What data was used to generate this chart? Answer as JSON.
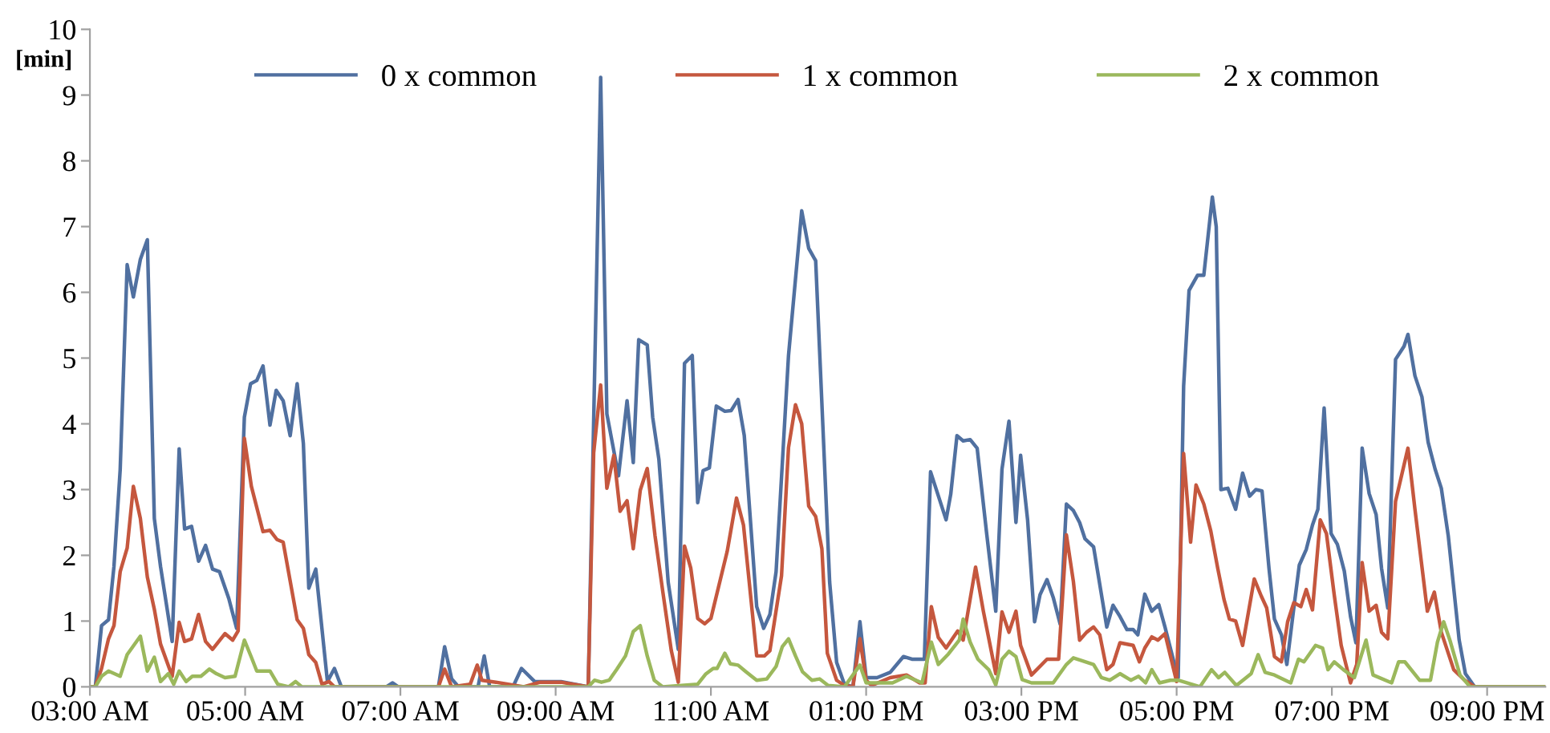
{
  "chart_data": {
    "type": "line",
    "ylabel": "[min]",
    "xlim": [
      3,
      21.75
    ],
    "ylim": [
      0,
      10
    ],
    "yticks": [
      0,
      1,
      2,
      3,
      4,
      5,
      6,
      7,
      8,
      9,
      10
    ],
    "xticks": [
      {
        "value": 3,
        "label": "03:00 AM"
      },
      {
        "value": 5,
        "label": "05:00 AM"
      },
      {
        "value": 7,
        "label": "07:00 AM"
      },
      {
        "value": 9,
        "label": "09:00 AM"
      },
      {
        "value": 11,
        "label": "11:00 AM"
      },
      {
        "value": 13,
        "label": "01:00 PM"
      },
      {
        "value": 15,
        "label": "03:00 PM"
      },
      {
        "value": 17,
        "label": "05:00 PM"
      },
      {
        "value": 19,
        "label": "07:00 PM"
      },
      {
        "value": 21,
        "label": "09:00 PM"
      }
    ],
    "grid": false,
    "legend": "top",
    "marker": "none",
    "line_style": "solid",
    "series": [
      {
        "name": "0 x common",
        "color": "#5070a0",
        "x": [
          3.0,
          3.07,
          3.15,
          3.24,
          3.31,
          3.39,
          3.48,
          3.56,
          3.65,
          3.74,
          3.83,
          3.91,
          4.06,
          4.15,
          4.22,
          4.31,
          4.4,
          4.49,
          4.58,
          4.67,
          4.79,
          4.89,
          4.99,
          5.07,
          5.15,
          5.23,
          5.32,
          5.4,
          5.49,
          5.58,
          5.67,
          5.75,
          5.82,
          5.91,
          6.06,
          6.15,
          6.24,
          6.82,
          6.9,
          6.97,
          7.49,
          7.57,
          7.66,
          7.75,
          8.0,
          8.08,
          8.15,
          8.45,
          8.56,
          8.73,
          9.07,
          9.42,
          9.58,
          9.66,
          9.81,
          9.92,
          10.0,
          10.07,
          10.18,
          10.25,
          10.33,
          10.45,
          10.58,
          10.66,
          10.76,
          10.83,
          10.9,
          10.98,
          11.07,
          11.18,
          11.26,
          11.35,
          11.43,
          11.59,
          11.68,
          11.76,
          11.84,
          12.0,
          12.17,
          12.26,
          12.35,
          12.53,
          12.62,
          12.72,
          12.83,
          12.92,
          13.0,
          13.14,
          13.31,
          13.48,
          13.59,
          13.75,
          13.83,
          14.03,
          14.09,
          14.17,
          14.25,
          14.34,
          14.43,
          14.55,
          14.67,
          14.75,
          14.84,
          14.93,
          14.99,
          15.08,
          15.17,
          15.24,
          15.33,
          15.41,
          15.5,
          15.58,
          15.67,
          15.75,
          15.82,
          15.93,
          16.1,
          16.18,
          16.27,
          16.36,
          16.44,
          16.5,
          16.59,
          16.68,
          16.77,
          16.85,
          16.99,
          17.02,
          17.09,
          17.16,
          17.27,
          17.35,
          17.46,
          17.51,
          17.57,
          17.66,
          17.76,
          17.85,
          17.94,
          18.02,
          18.1,
          18.19,
          18.26,
          18.35,
          18.42,
          18.5,
          18.58,
          18.67,
          18.75,
          18.82,
          18.9,
          18.99,
          19.07,
          19.16,
          19.24,
          19.31,
          19.39,
          19.48,
          19.57,
          19.64,
          19.72,
          19.82,
          19.93,
          19.98,
          20.07,
          20.16,
          20.24,
          20.33,
          20.41,
          20.5,
          20.64,
          20.72,
          20.84,
          21.75
        ],
        "values": [
          0,
          0,
          0.93,
          1.02,
          1.83,
          3.3,
          6.42,
          5.93,
          6.5,
          6.8,
          2.56,
          1.83,
          0.69,
          3.62,
          2.4,
          2.44,
          1.91,
          2.15,
          1.79,
          1.75,
          1.34,
          0.89,
          4.1,
          4.61,
          4.66,
          4.88,
          3.98,
          4.51,
          4.35,
          3.82,
          4.61,
          3.7,
          1.5,
          1.79,
          0.08,
          0.28,
          0,
          0,
          0.06,
          0,
          0,
          0.61,
          0.12,
          0,
          0,
          0.47,
          0,
          0,
          0.28,
          0.08,
          0.08,
          0,
          9.27,
          4.15,
          3.21,
          4.35,
          3.41,
          5.28,
          5.2,
          4.1,
          3.46,
          1.59,
          0.57,
          4.92,
          5.04,
          2.8,
          3.29,
          3.33,
          4.27,
          4.19,
          4.2,
          4.37,
          3.82,
          1.22,
          0.89,
          1.1,
          1.75,
          5.04,
          7.24,
          6.67,
          6.48,
          1.59,
          0.37,
          0.04,
          0,
          0.99,
          0.14,
          0.14,
          0.22,
          0.46,
          0.42,
          0.42,
          3.27,
          2.54,
          2.93,
          3.82,
          3.74,
          3.76,
          3.63,
          2.36,
          1.15,
          3.31,
          4.04,
          2.5,
          3.52,
          2.54,
          0.99,
          1.4,
          1.63,
          1.36,
          0.95,
          2.78,
          2.68,
          2.5,
          2.25,
          2.13,
          0.91,
          1.24,
          1.07,
          0.87,
          0.87,
          0.79,
          1.41,
          1.15,
          1.25,
          0.91,
          0.26,
          0.14,
          4.57,
          6.03,
          6.26,
          6.26,
          7.45,
          7.0,
          3.0,
          3.02,
          2.7,
          3.25,
          2.9,
          3.0,
          2.98,
          1.8,
          1.03,
          0.79,
          0.34,
          1.11,
          1.85,
          2.09,
          2.46,
          2.7,
          4.24,
          2.33,
          2.17,
          1.76,
          1.07,
          0.67,
          3.63,
          2.94,
          2.62,
          1.8,
          1.2,
          4.98,
          5.18,
          5.36,
          4.73,
          4.41,
          3.72,
          3.31,
          3.02,
          2.29,
          0.71,
          0.2,
          0,
          0
        ]
      },
      {
        "name": "1 x common",
        "color": "#c5573e",
        "x": [
          3.0,
          3.07,
          3.15,
          3.24,
          3.31,
          3.39,
          3.48,
          3.56,
          3.65,
          3.74,
          3.83,
          3.91,
          4.06,
          4.15,
          4.22,
          4.31,
          4.4,
          4.49,
          4.58,
          4.74,
          4.84,
          4.91,
          4.99,
          5.08,
          5.23,
          5.32,
          5.41,
          5.49,
          5.67,
          5.75,
          5.82,
          5.91,
          5.99,
          6.08,
          6.15,
          7.49,
          7.57,
          7.66,
          7.9,
          7.99,
          8.05,
          8.23,
          8.59,
          8.8,
          9.07,
          9.42,
          9.49,
          9.58,
          9.66,
          9.75,
          9.83,
          9.92,
          10.0,
          10.09,
          10.18,
          10.28,
          10.38,
          10.49,
          10.58,
          10.66,
          10.74,
          10.83,
          10.92,
          11.0,
          11.21,
          11.33,
          11.42,
          11.59,
          11.69,
          11.76,
          11.91,
          12.0,
          12.09,
          12.17,
          12.26,
          12.35,
          12.43,
          12.5,
          12.62,
          12.72,
          12.83,
          12.92,
          13.0,
          13.07,
          13.31,
          13.52,
          13.69,
          13.76,
          13.84,
          13.93,
          14.03,
          14.18,
          14.25,
          14.41,
          14.51,
          14.67,
          14.75,
          14.84,
          14.93,
          14.99,
          15.13,
          15.33,
          15.48,
          15.58,
          15.67,
          15.75,
          15.84,
          15.93,
          16.01,
          16.1,
          16.18,
          16.27,
          16.44,
          16.52,
          16.59,
          16.68,
          16.76,
          16.85,
          17.0,
          17.09,
          17.18,
          17.25,
          17.35,
          17.44,
          17.53,
          17.61,
          17.68,
          17.76,
          17.85,
          18.0,
          18.09,
          18.16,
          18.26,
          18.35,
          18.43,
          18.51,
          18.6,
          18.67,
          18.75,
          18.85,
          18.93,
          19.03,
          19.12,
          19.24,
          19.32,
          19.39,
          19.48,
          19.57,
          19.64,
          19.72,
          19.82,
          19.98,
          20.07,
          20.23,
          20.32,
          20.41,
          20.57,
          20.71,
          20.84,
          21.75
        ],
        "values": [
          0,
          0,
          0.28,
          0.73,
          0.93,
          1.75,
          2.11,
          3.05,
          2.56,
          1.67,
          1.18,
          0.65,
          0.16,
          0.98,
          0.69,
          0.73,
          1.1,
          0.69,
          0.57,
          0.81,
          0.71,
          0.85,
          3.78,
          3.05,
          2.36,
          2.38,
          2.24,
          2.2,
          1.02,
          0.89,
          0.49,
          0.37,
          0.04,
          0.08,
          0,
          0,
          0.27,
          0,
          0.04,
          0.33,
          0.1,
          0.07,
          0,
          0.07,
          0.07,
          0,
          3.56,
          4.59,
          3.02,
          3.52,
          2.67,
          2.83,
          2.1,
          2.99,
          3.32,
          2.3,
          1.45,
          0.55,
          0.07,
          2.14,
          1.81,
          1.04,
          0.96,
          1.04,
          2.06,
          2.87,
          2.46,
          0.47,
          0.47,
          0.55,
          1.69,
          3.64,
          4.29,
          4.0,
          2.75,
          2.59,
          2.1,
          0.51,
          0.1,
          0.02,
          0,
          0.73,
          0.1,
          0.02,
          0.14,
          0.18,
          0.06,
          0.06,
          1.22,
          0.75,
          0.59,
          0.85,
          0.71,
          1.82,
          1.15,
          0.2,
          1.14,
          0.83,
          1.15,
          0.63,
          0.18,
          0.42,
          0.42,
          2.31,
          1.6,
          0.71,
          0.83,
          0.91,
          0.79,
          0.26,
          0.34,
          0.67,
          0.63,
          0.38,
          0.59,
          0.76,
          0.71,
          0.81,
          0.08,
          3.55,
          2.2,
          3.07,
          2.78,
          2.37,
          1.8,
          1.33,
          1.03,
          1.0,
          0.63,
          1.64,
          1.38,
          1.2,
          0.46,
          0.38,
          0.99,
          1.28,
          1.22,
          1.48,
          1.17,
          2.54,
          2.33,
          1.4,
          0.63,
          0.06,
          0.34,
          1.89,
          1.15,
          1.24,
          0.83,
          0.73,
          2.82,
          3.63,
          2.7,
          1.15,
          1.44,
          0.83,
          0.26,
          0.1,
          0,
          0
        ]
      },
      {
        "name": "2 x common",
        "color": "#9bb85c",
        "x": [
          3.0,
          3.07,
          3.15,
          3.24,
          3.39,
          3.48,
          3.65,
          3.74,
          3.83,
          3.91,
          4.01,
          4.08,
          4.15,
          4.24,
          4.32,
          4.43,
          4.54,
          4.63,
          4.74,
          4.87,
          4.99,
          5.08,
          5.15,
          5.32,
          5.42,
          5.56,
          5.65,
          5.73,
          9.42,
          9.5,
          9.59,
          9.69,
          9.79,
          9.9,
          10.0,
          10.09,
          10.18,
          10.27,
          10.38,
          10.83,
          10.93,
          11.03,
          11.08,
          11.18,
          11.25,
          11.35,
          11.45,
          11.59,
          11.72,
          11.84,
          11.92,
          12.0,
          12.09,
          12.18,
          12.3,
          12.4,
          12.51,
          12.72,
          12.92,
          13.0,
          13.34,
          13.52,
          13.72,
          13.84,
          13.93,
          14.06,
          14.2,
          14.25,
          14.34,
          14.44,
          14.58,
          14.67,
          14.75,
          14.84,
          14.93,
          15.01,
          15.13,
          15.41,
          15.58,
          15.67,
          15.75,
          15.93,
          16.03,
          16.14,
          16.27,
          16.41,
          16.51,
          16.6,
          16.68,
          16.78,
          16.92,
          17.02,
          17.3,
          17.45,
          17.54,
          17.62,
          17.77,
          17.96,
          18.05,
          18.14,
          18.26,
          18.47,
          18.57,
          18.64,
          18.79,
          18.88,
          18.95,
          19.03,
          19.15,
          19.29,
          19.44,
          19.53,
          19.77,
          19.86,
          19.94,
          20.13,
          20.27,
          20.36,
          20.44,
          20.52,
          20.65,
          20.78,
          21.75
        ],
        "values": [
          0,
          0,
          0.16,
          0.24,
          0.16,
          0.49,
          0.77,
          0.24,
          0.45,
          0.08,
          0.2,
          0.04,
          0.24,
          0.08,
          0.16,
          0.16,
          0.27,
          0.2,
          0.14,
          0.16,
          0.71,
          0.45,
          0.24,
          0.24,
          0.04,
          0,
          0.08,
          0,
          0,
          0.1,
          0.07,
          0.1,
          0.27,
          0.47,
          0.84,
          0.93,
          0.47,
          0.1,
          0,
          0.04,
          0.19,
          0.28,
          0.28,
          0.51,
          0.35,
          0.33,
          0.23,
          0.1,
          0.12,
          0.31,
          0.61,
          0.73,
          0.47,
          0.23,
          0.1,
          0.12,
          0.02,
          0,
          0.33,
          0.06,
          0.06,
          0.16,
          0.06,
          0.68,
          0.34,
          0.5,
          0.71,
          1.03,
          0.68,
          0.42,
          0.26,
          0.03,
          0.42,
          0.54,
          0.46,
          0.11,
          0.06,
          0.06,
          0.34,
          0.44,
          0.41,
          0.34,
          0.14,
          0.1,
          0.2,
          0.1,
          0.16,
          0.06,
          0.26,
          0.06,
          0.1,
          0.1,
          0,
          0.26,
          0.14,
          0.22,
          0.02,
          0.2,
          0.49,
          0.22,
          0.18,
          0.06,
          0.42,
          0.38,
          0.63,
          0.59,
          0.26,
          0.38,
          0.26,
          0.14,
          0.71,
          0.18,
          0.06,
          0.38,
          0.38,
          0.1,
          0.1,
          0.68,
          0.99,
          0.71,
          0.18,
          0,
          0
        ]
      }
    ]
  }
}
